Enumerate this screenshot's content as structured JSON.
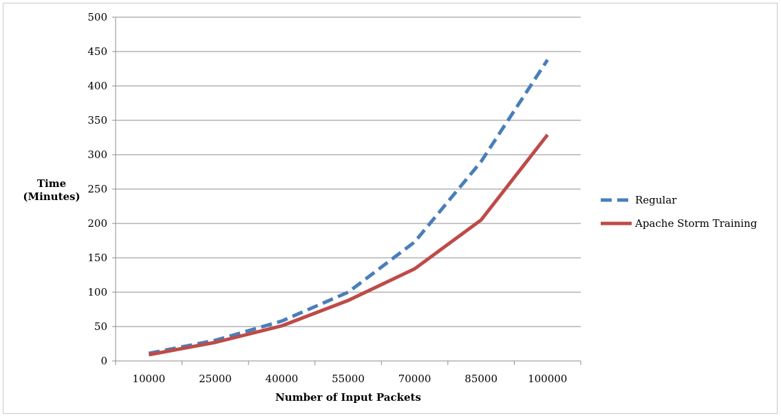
{
  "chart_data": {
    "type": "line",
    "title": "",
    "xlabel": "Number of Input Packets",
    "ylabel_lines": [
      "Time",
      "(Minutes)"
    ],
    "categories": [
      "10000",
      "25000",
      "40000",
      "55000",
      "70000",
      "85000",
      "100000"
    ],
    "y_ticks": [
      "0",
      "50",
      "100",
      "150",
      "200",
      "250",
      "300",
      "350",
      "400",
      "450",
      "500"
    ],
    "ylim": [
      0,
      500
    ],
    "grid": "horizontal",
    "legend_position": "right",
    "series": [
      {
        "name": "Regular",
        "values": [
          11,
          30,
          58,
          100,
          173,
          290,
          438
        ],
        "color": "#4a7ebb",
        "style": "dashed"
      },
      {
        "name": "Apache Storm Training",
        "values": [
          9,
          27,
          51,
          88,
          134,
          205,
          329
        ],
        "color": "#be4b48",
        "style": "solid"
      }
    ]
  }
}
